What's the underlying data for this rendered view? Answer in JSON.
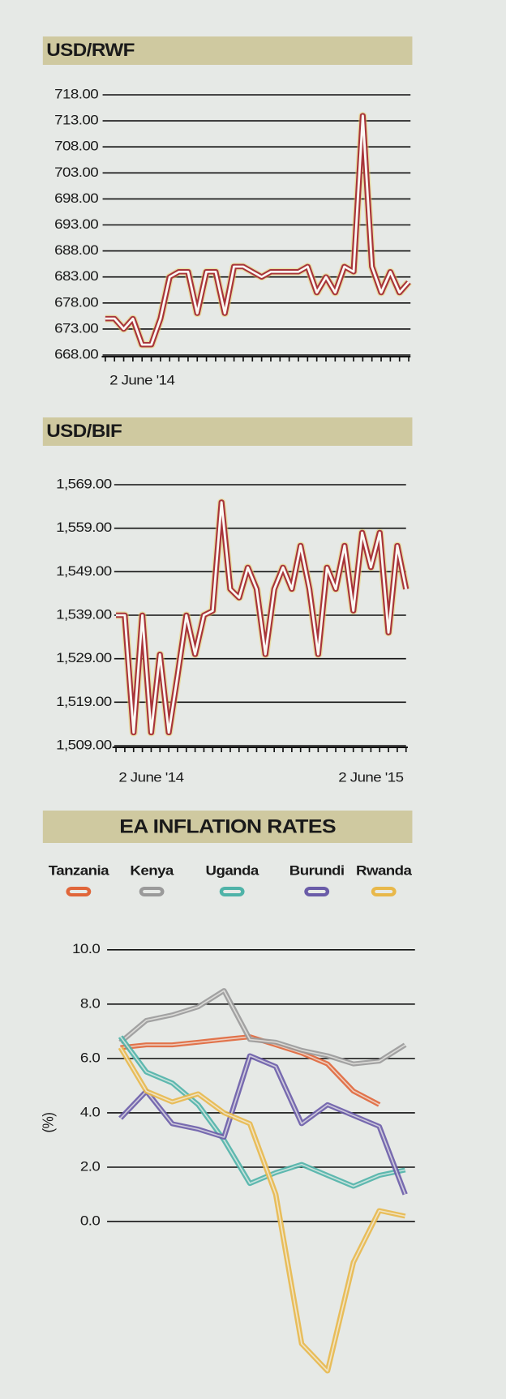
{
  "chart_data": [
    {
      "type": "line",
      "title": "USD/RWF",
      "color": "#a8343a",
      "categories": [
        null,
        null,
        null,
        null,
        "2 June '14",
        null,
        null,
        null,
        null,
        null,
        null,
        null,
        null,
        null,
        null,
        null,
        null,
        null,
        null,
        null,
        null,
        null,
        null,
        null,
        null,
        null,
        null,
        null,
        null,
        null,
        null,
        null,
        null,
        null
      ],
      "values": [
        675,
        675,
        673,
        675,
        670,
        670,
        675,
        683,
        684,
        684,
        676,
        684,
        684,
        676,
        685,
        685,
        684,
        683,
        684,
        684,
        684,
        684,
        685,
        680,
        683,
        680,
        685,
        684,
        714,
        685,
        680,
        684,
        680,
        682
      ],
      "ylim": [
        668,
        718
      ],
      "yticks": [
        {
          "value": 668,
          "label": "668.00"
        },
        {
          "value": 673,
          "label": "673.00"
        },
        {
          "value": 678,
          "label": "678.00"
        },
        {
          "value": 683,
          "label": "683.00"
        },
        {
          "value": 688,
          "label": "688.00"
        },
        {
          "value": 693,
          "label": "693.00"
        },
        {
          "value": 698,
          "label": "698.00"
        },
        {
          "value": 703,
          "label": "703.00"
        },
        {
          "value": 708,
          "label": "708.00"
        },
        {
          "value": 713,
          "label": "713.00"
        },
        {
          "value": 718,
          "label": "718.00"
        }
      ],
      "grid": true
    },
    {
      "type": "line",
      "title": "USD/BIF",
      "color": "#a8343a",
      "categories": [
        null,
        null,
        null,
        null,
        "2 June '14",
        null,
        null,
        null,
        null,
        null,
        null,
        null,
        null,
        null,
        null,
        null,
        null,
        null,
        null,
        null,
        null,
        null,
        null,
        null,
        null,
        null,
        null,
        null,
        null,
        "2 June '15",
        null,
        null,
        null,
        null
      ],
      "values": [
        1539,
        1539,
        1512,
        1539,
        1512,
        1530,
        1512,
        1525,
        1539,
        1530,
        1539,
        1540,
        1565,
        1545,
        1543,
        1550,
        1545,
        1530,
        1545,
        1550,
        1545,
        1555,
        1545,
        1530,
        1550,
        1545,
        1555,
        1540,
        1558,
        1550,
        1558,
        1535,
        1555,
        1545
      ],
      "ylim": [
        1509,
        1569
      ],
      "yticks": [
        {
          "value": 1509,
          "label": "1,509.00"
        },
        {
          "value": 1519,
          "label": "1,519.00"
        },
        {
          "value": 1529,
          "label": "1,529.00"
        },
        {
          "value": 1539,
          "label": "1,539.00"
        },
        {
          "value": 1549,
          "label": "1,549.00"
        },
        {
          "value": 1559,
          "label": "1,559.00"
        },
        {
          "value": 1569,
          "label": "1,569.00"
        }
      ],
      "grid": true
    },
    {
      "type": "line",
      "title": "EA INFLATION RATES",
      "y_label": "(%)",
      "categories": [
        null,
        null,
        null,
        null,
        null,
        null,
        null,
        null,
        null,
        null,
        null,
        null
      ],
      "series": [
        {
          "name": "Tanzania",
          "color": "#e0663a",
          "values": [
            6.4,
            6.5,
            6.5,
            6.6,
            6.7,
            6.8,
            6.5,
            6.2,
            5.8,
            4.8,
            4.3,
            null
          ]
        },
        {
          "name": "Kenya",
          "color": "#9a9a9a",
          "values": [
            6.6,
            7.4,
            7.6,
            7.9,
            8.5,
            6.7,
            6.6,
            6.3,
            6.1,
            5.8,
            5.9,
            6.5
          ]
        },
        {
          "name": "Uganda",
          "color": "#4fb3a8",
          "values": [
            6.8,
            5.5,
            5.1,
            4.3,
            3.0,
            1.4,
            1.8,
            2.1,
            1.7,
            1.3,
            1.7,
            1.9
          ]
        },
        {
          "name": "Burundi",
          "color": "#6a5ca8",
          "values": [
            3.8,
            4.8,
            3.6,
            3.4,
            3.1,
            6.1,
            5.7,
            3.6,
            4.3,
            3.9,
            3.5,
            1.0
          ]
        },
        {
          "name": "Rwanda",
          "color": "#e8b84a",
          "values": [
            6.4,
            4.8,
            4.4,
            4.7,
            4.0,
            3.6,
            1.0,
            -4.5,
            -5.5,
            -1.5,
            0.4,
            0.2
          ]
        }
      ],
      "ylim": [
        -6.5,
        10.5
      ],
      "yticks": [
        {
          "value": 0,
          "label": "0.0"
        },
        {
          "value": 2,
          "label": "2.0"
        },
        {
          "value": 4,
          "label": "4.0"
        },
        {
          "value": 6,
          "label": "6.0"
        },
        {
          "value": 8,
          "label": "8.0"
        },
        {
          "value": 10,
          "label": "10.0"
        }
      ],
      "grid": true
    }
  ]
}
